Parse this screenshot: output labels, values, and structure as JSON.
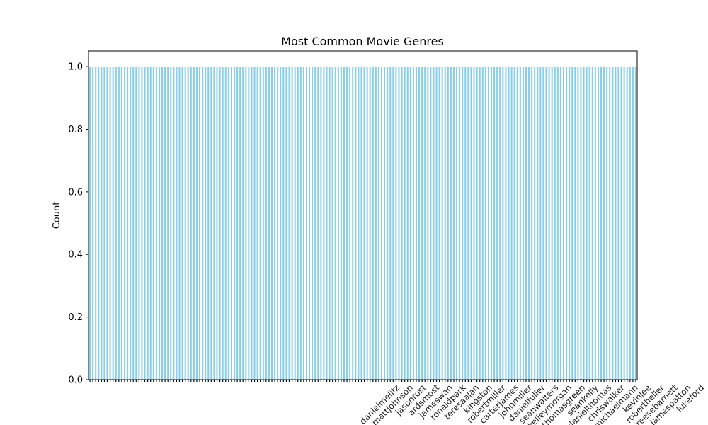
{
  "chart_data": {
    "type": "bar",
    "title": "Most Common Movie Genres",
    "xlabel": "",
    "ylabel": "Count",
    "ylim": [
      0,
      1.05
    ],
    "yticks": [
      "0.0",
      "0.2",
      "0.4",
      "0.6",
      "0.8",
      "1.0"
    ],
    "bar_count": 190,
    "bar_value": 1,
    "bar_color": "#87CEEB",
    "grid": false,
    "legend": "none",
    "visible_category_labels": [
      "danielmelitz",
      "mattjohnson",
      "jasonrost",
      "ardsmost",
      "jameswan",
      "ronaldpark",
      "teresaalan",
      "kingston",
      "robertmiller",
      "carterjames",
      "johnmiller",
      "danielfuller",
      "seanwalters",
      "kelleymorgan",
      "thomasgreen",
      "seankelly",
      "danielthomas",
      "chriswalker",
      "michaelmann",
      "kevinlee",
      "robertheller",
      "reesebarnett",
      "jamespatton",
      "lukeford"
    ]
  }
}
